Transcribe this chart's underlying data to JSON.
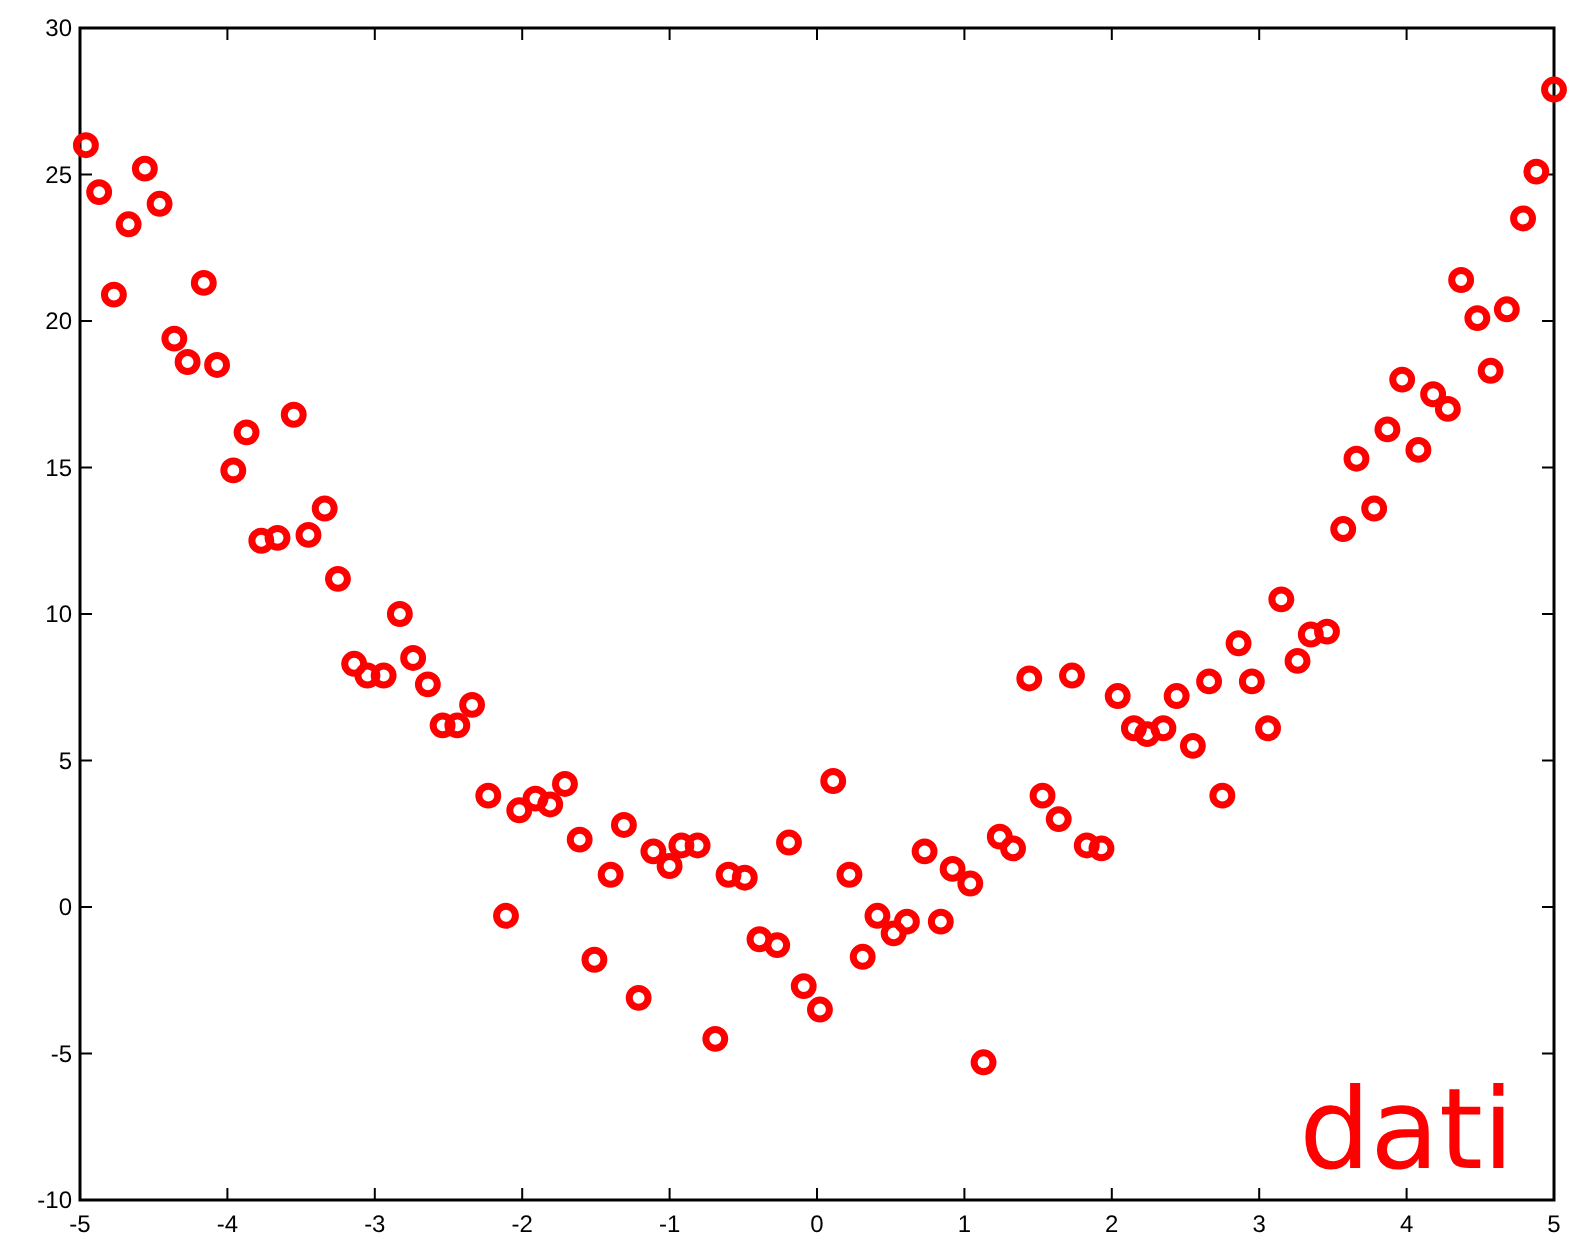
{
  "chart_data": {
    "type": "scatter",
    "x": [
      -4.96,
      -4.87,
      -4.77,
      -4.67,
      -4.56,
      -4.46,
      -4.36,
      -4.27,
      -4.16,
      -4.07,
      -3.96,
      -3.87,
      -3.77,
      -3.66,
      -3.55,
      -3.45,
      -3.34,
      -3.25,
      -3.14,
      -3.05,
      -2.94,
      -2.83,
      -2.74,
      -2.64,
      -2.54,
      -2.44,
      -2.34,
      -2.23,
      -2.11,
      -2.02,
      -1.91,
      -1.81,
      -1.71,
      -1.61,
      -1.51,
      -1.4,
      -1.31,
      -1.21,
      -1.11,
      -1.0,
      -0.92,
      -0.81,
      -0.69,
      -0.6,
      -0.49,
      -0.39,
      -0.27,
      -0.19,
      -0.09,
      0.02,
      0.11,
      0.22,
      0.31,
      0.41,
      0.52,
      0.61,
      0.73,
      0.84,
      0.92,
      1.04,
      1.13,
      1.24,
      1.33,
      1.44,
      1.53,
      1.64,
      1.73,
      1.83,
      1.93,
      2.04,
      2.15,
      2.24,
      2.35,
      2.44,
      2.55,
      2.66,
      2.75,
      2.86,
      2.95,
      3.06,
      3.15,
      3.26,
      3.35,
      3.46,
      3.57,
      3.66,
      3.78,
      3.87,
      3.97,
      4.08,
      4.18,
      4.28,
      4.37,
      4.48,
      4.57,
      4.68,
      4.79,
      4.88,
      5.0
    ],
    "series": [
      {
        "color": "#ff0000",
        "values": [
          26.0,
          24.4,
          20.9,
          23.3,
          25.2,
          24.0,
          19.4,
          18.6,
          21.3,
          18.5,
          14.9,
          16.2,
          12.5,
          12.6,
          16.8,
          12.7,
          13.6,
          11.2,
          8.3,
          7.9,
          7.9,
          10.0,
          8.5,
          7.6,
          6.2,
          6.2,
          6.9,
          3.8,
          -0.3,
          3.3,
          3.7,
          3.5,
          4.2,
          2.3,
          -1.8,
          1.1,
          2.8,
          -3.1,
          1.9,
          1.4,
          2.1,
          2.1,
          -4.5,
          1.1,
          1.0,
          -1.1,
          -1.3,
          2.2,
          -2.7,
          -3.5,
          4.3,
          1.1,
          -1.7,
          -0.3,
          -0.9,
          -0.5,
          1.9,
          -0.5,
          1.3,
          0.8,
          -5.3,
          2.4,
          2.0,
          7.8,
          3.8,
          3.0,
          7.9,
          2.1,
          2.0,
          7.2,
          6.1,
          5.9,
          6.1,
          7.2,
          5.5,
          7.7,
          3.8,
          9.0,
          7.7,
          6.1,
          10.5,
          8.4,
          9.3,
          9.4,
          12.9,
          15.3,
          13.6,
          16.3,
          18.0,
          15.6,
          17.5,
          17.0,
          21.4,
          20.1,
          18.3,
          20.4,
          23.5,
          25.1,
          27.9
        ]
      }
    ],
    "xlim": [
      -5,
      5
    ],
    "xticks": [
      -5,
      -4,
      -3,
      -2,
      -1,
      0,
      1,
      2,
      3,
      4,
      5
    ],
    "ylim": [
      -10,
      30
    ],
    "yticks": [
      -10,
      -5,
      0,
      5,
      10,
      15,
      20,
      25,
      30
    ],
    "marker": "circle",
    "grid": false,
    "annotations": [
      "dati"
    ]
  }
}
